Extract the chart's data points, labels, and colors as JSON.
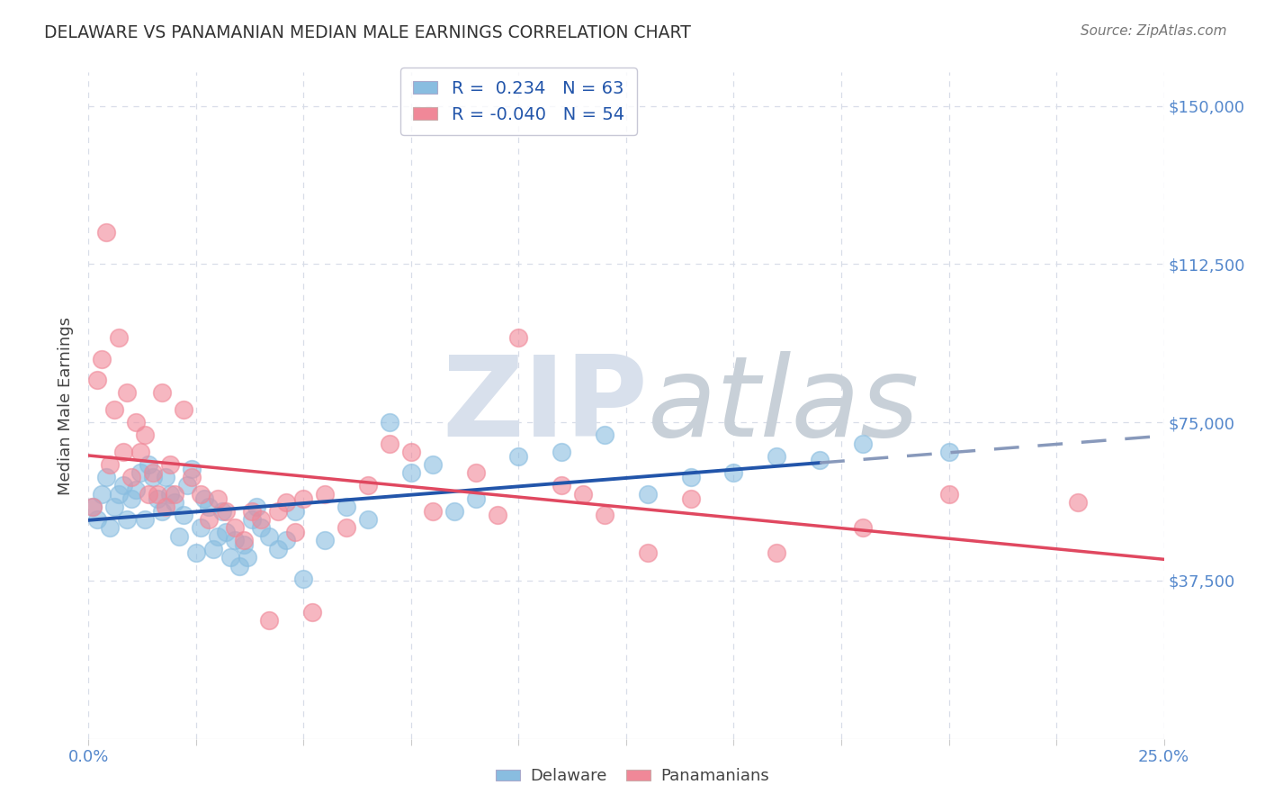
{
  "title": "DELAWARE VS PANAMANIAN MEDIAN MALE EARNINGS CORRELATION CHART",
  "source": "Source: ZipAtlas.com",
  "ylabel": "Median Male Earnings",
  "y_ticks": [
    0,
    37500,
    75000,
    112500,
    150000
  ],
  "x_min": 0.0,
  "x_max": 0.25,
  "y_min": 0,
  "y_max": 158000,
  "blue_color": "#89bde0",
  "pink_color": "#f08898",
  "blue_line_color": "#2255aa",
  "pink_line_color": "#e04860",
  "dashed_color": "#8899bb",
  "watermark_zip_color": "#d8e0ec",
  "watermark_atlas_color": "#c8d0d8",
  "grid_color": "#d8dde8",
  "tick_color": "#5588cc",
  "delaware_points": [
    [
      0.001,
      55000
    ],
    [
      0.002,
      52000
    ],
    [
      0.003,
      58000
    ],
    [
      0.004,
      62000
    ],
    [
      0.005,
      50000
    ],
    [
      0.006,
      55000
    ],
    [
      0.007,
      58000
    ],
    [
      0.008,
      60000
    ],
    [
      0.009,
      52000
    ],
    [
      0.01,
      57000
    ],
    [
      0.011,
      59000
    ],
    [
      0.012,
      63000
    ],
    [
      0.013,
      52000
    ],
    [
      0.014,
      65000
    ],
    [
      0.015,
      62000
    ],
    [
      0.016,
      57000
    ],
    [
      0.017,
      54000
    ],
    [
      0.018,
      62000
    ],
    [
      0.019,
      58000
    ],
    [
      0.02,
      56000
    ],
    [
      0.021,
      48000
    ],
    [
      0.022,
      53000
    ],
    [
      0.023,
      60000
    ],
    [
      0.024,
      64000
    ],
    [
      0.025,
      44000
    ],
    [
      0.026,
      50000
    ],
    [
      0.027,
      57000
    ],
    [
      0.028,
      55000
    ],
    [
      0.029,
      45000
    ],
    [
      0.03,
      48000
    ],
    [
      0.031,
      54000
    ],
    [
      0.032,
      49000
    ],
    [
      0.033,
      43000
    ],
    [
      0.034,
      47000
    ],
    [
      0.035,
      41000
    ],
    [
      0.036,
      46000
    ],
    [
      0.037,
      43000
    ],
    [
      0.038,
      52000
    ],
    [
      0.039,
      55000
    ],
    [
      0.04,
      50000
    ],
    [
      0.042,
      48000
    ],
    [
      0.044,
      45000
    ],
    [
      0.046,
      47000
    ],
    [
      0.048,
      54000
    ],
    [
      0.05,
      38000
    ],
    [
      0.055,
      47000
    ],
    [
      0.06,
      55000
    ],
    [
      0.065,
      52000
    ],
    [
      0.07,
      75000
    ],
    [
      0.075,
      63000
    ],
    [
      0.08,
      65000
    ],
    [
      0.085,
      54000
    ],
    [
      0.09,
      57000
    ],
    [
      0.1,
      67000
    ],
    [
      0.11,
      68000
    ],
    [
      0.12,
      72000
    ],
    [
      0.13,
      58000
    ],
    [
      0.14,
      62000
    ],
    [
      0.15,
      63000
    ],
    [
      0.16,
      67000
    ],
    [
      0.17,
      66000
    ],
    [
      0.18,
      70000
    ],
    [
      0.2,
      68000
    ]
  ],
  "panamanian_points": [
    [
      0.003,
      90000
    ],
    [
      0.004,
      120000
    ],
    [
      0.005,
      65000
    ],
    [
      0.006,
      78000
    ],
    [
      0.007,
      95000
    ],
    [
      0.008,
      68000
    ],
    [
      0.009,
      82000
    ],
    [
      0.01,
      62000
    ],
    [
      0.011,
      75000
    ],
    [
      0.012,
      68000
    ],
    [
      0.013,
      72000
    ],
    [
      0.014,
      58000
    ],
    [
      0.015,
      63000
    ],
    [
      0.016,
      58000
    ],
    [
      0.017,
      82000
    ],
    [
      0.018,
      55000
    ],
    [
      0.019,
      65000
    ],
    [
      0.02,
      58000
    ],
    [
      0.022,
      78000
    ],
    [
      0.024,
      62000
    ],
    [
      0.026,
      58000
    ],
    [
      0.028,
      52000
    ],
    [
      0.03,
      57000
    ],
    [
      0.032,
      54000
    ],
    [
      0.034,
      50000
    ],
    [
      0.036,
      47000
    ],
    [
      0.038,
      54000
    ],
    [
      0.04,
      52000
    ],
    [
      0.042,
      28000
    ],
    [
      0.044,
      54000
    ],
    [
      0.046,
      56000
    ],
    [
      0.048,
      49000
    ],
    [
      0.05,
      57000
    ],
    [
      0.052,
      30000
    ],
    [
      0.055,
      58000
    ],
    [
      0.06,
      50000
    ],
    [
      0.065,
      60000
    ],
    [
      0.07,
      70000
    ],
    [
      0.075,
      68000
    ],
    [
      0.08,
      54000
    ],
    [
      0.09,
      63000
    ],
    [
      0.095,
      53000
    ],
    [
      0.1,
      95000
    ],
    [
      0.11,
      60000
    ],
    [
      0.115,
      58000
    ],
    [
      0.12,
      53000
    ],
    [
      0.13,
      44000
    ],
    [
      0.14,
      57000
    ],
    [
      0.16,
      44000
    ],
    [
      0.18,
      50000
    ],
    [
      0.2,
      58000
    ],
    [
      0.23,
      56000
    ],
    [
      0.002,
      85000
    ],
    [
      0.001,
      55000
    ]
  ],
  "legend_line1": "R =  0.234   N = 63",
  "legend_line2": "R = -0.040   N = 54",
  "legend_text_color": "#2255aa"
}
